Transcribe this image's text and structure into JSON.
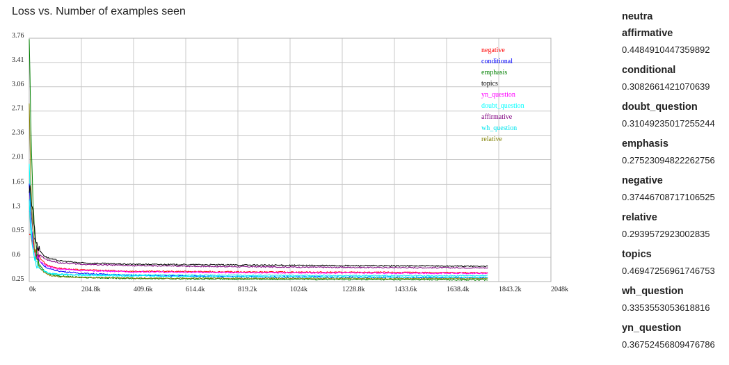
{
  "title": "Loss vs. Number of examples seen",
  "sidebar": {
    "title": "neutra",
    "entries": [
      {
        "name": "affirmative",
        "value": "0.4484910447359892"
      },
      {
        "name": "conditional",
        "value": "0.3082661421070639"
      },
      {
        "name": "doubt_question",
        "value": "0.31049235017255244"
      },
      {
        "name": "emphasis",
        "value": "0.27523094822262756"
      },
      {
        "name": "negative",
        "value": "0.37446708717106525"
      },
      {
        "name": "relative",
        "value": "0.2939572923002835"
      },
      {
        "name": "topics",
        "value": "0.46947256961746753"
      },
      {
        "name": "wh_question",
        "value": "0.3353553053618816"
      },
      {
        "name": "yn_question",
        "value": "0.36752456809476786"
      }
    ]
  },
  "chart_data": {
    "type": "line",
    "title": "Loss vs. Number of examples seen",
    "xlabel": "",
    "ylabel": "",
    "xlim": [
      0,
      2048
    ],
    "ylim": [
      0.25,
      3.76
    ],
    "x_unit": "k examples",
    "x_ticks": [
      0,
      204.8,
      409.6,
      614.4,
      819.2,
      1024,
      1228.8,
      1433.6,
      1638.4,
      1843.2,
      2048
    ],
    "x_tick_labels": [
      "0k",
      "204.8k",
      "409.6k",
      "614.4k",
      "819.2k",
      "1024k",
      "1228.8k",
      "1433.6k",
      "1638.4k",
      "1843.2k",
      "2048k"
    ],
    "y_ticks": [
      0.25,
      0.6,
      0.95,
      1.3,
      1.65,
      2.01,
      2.36,
      2.71,
      3.06,
      3.41,
      3.76
    ],
    "y_tick_labels": [
      "0.25",
      "0.6",
      "0.95",
      "1.3",
      "1.65",
      "2.01",
      "2.36",
      "2.71",
      "3.06",
      "3.41",
      "3.76"
    ],
    "grid": true,
    "legend_position": "top-right",
    "x_end": 1800,
    "series": [
      {
        "name": "negative",
        "color": "#ff0000",
        "x": [
          0,
          3,
          6,
          10,
          15,
          20,
          30,
          40,
          60,
          80,
          120,
          200,
          400,
          800,
          1200,
          1600,
          1800
        ],
        "y": [
          0.9,
          0.92,
          0.88,
          0.84,
          0.8,
          0.75,
          0.68,
          0.6,
          0.52,
          0.47,
          0.44,
          0.42,
          0.4,
          0.39,
          0.385,
          0.38,
          0.375
        ]
      },
      {
        "name": "conditional",
        "color": "#0000ff",
        "x": [
          0,
          3,
          6,
          10,
          15,
          20,
          30,
          40,
          60,
          80,
          120,
          200,
          400,
          800,
          1200,
          1600,
          1800
        ],
        "y": [
          1.65,
          1.45,
          1.2,
          0.95,
          0.8,
          0.7,
          0.6,
          0.55,
          0.47,
          0.43,
          0.4,
          0.37,
          0.34,
          0.32,
          0.315,
          0.31,
          0.31
        ]
      },
      {
        "name": "emphasis",
        "color": "#008000",
        "x": [
          0,
          3,
          6,
          10,
          15,
          20,
          30,
          40,
          60,
          80,
          120,
          200,
          400,
          800,
          1200,
          1600,
          1800
        ],
        "y": [
          3.75,
          3.2,
          2.6,
          2.0,
          1.4,
          1.0,
          0.65,
          0.5,
          0.4,
          0.36,
          0.33,
          0.31,
          0.295,
          0.285,
          0.28,
          0.277,
          0.275
        ]
      },
      {
        "name": "topics",
        "color": "#000000",
        "x": [
          0,
          3,
          6,
          10,
          15,
          20,
          30,
          40,
          60,
          80,
          120,
          200,
          400,
          800,
          1200,
          1600,
          1800
        ],
        "y": [
          1.55,
          1.6,
          1.5,
          1.35,
          1.3,
          1.0,
          0.8,
          0.7,
          0.62,
          0.58,
          0.55,
          0.52,
          0.5,
          0.49,
          0.48,
          0.475,
          0.47
        ]
      },
      {
        "name": "yn_question",
        "color": "#ff00ff",
        "x": [
          0,
          3,
          6,
          10,
          15,
          20,
          30,
          40,
          60,
          80,
          120,
          200,
          400,
          800,
          1200,
          1600,
          1800
        ],
        "y": [
          1.3,
          1.2,
          1.05,
          0.9,
          0.8,
          0.7,
          0.6,
          0.55,
          0.5,
          0.46,
          0.43,
          0.41,
          0.39,
          0.38,
          0.375,
          0.37,
          0.368
        ]
      },
      {
        "name": "doubt_question",
        "color": "#00ffff",
        "x": [
          0,
          3,
          6,
          10,
          15,
          20,
          30,
          40,
          60,
          80,
          120,
          200,
          400,
          800,
          1200,
          1600,
          1800
        ],
        "y": [
          2.0,
          1.6,
          1.2,
          0.9,
          0.7,
          0.6,
          0.5,
          0.45,
          0.4,
          0.37,
          0.35,
          0.34,
          0.33,
          0.32,
          0.315,
          0.312,
          0.31
        ]
      },
      {
        "name": "affirmative",
        "color": "#800080",
        "x": [
          0,
          3,
          6,
          10,
          15,
          20,
          30,
          40,
          60,
          80,
          120,
          200,
          400,
          800,
          1200,
          1600,
          1800
        ],
        "y": [
          1.6,
          1.5,
          1.3,
          1.1,
          0.95,
          0.85,
          0.72,
          0.65,
          0.58,
          0.55,
          0.52,
          0.5,
          0.48,
          0.465,
          0.455,
          0.45,
          0.448
        ]
      },
      {
        "name": "wh_question",
        "color": "#00e5ee",
        "x": [
          0,
          3,
          6,
          10,
          15,
          20,
          30,
          40,
          60,
          80,
          120,
          200,
          400,
          800,
          1200,
          1600,
          1800
        ],
        "y": [
          1.4,
          1.2,
          1.0,
          0.85,
          0.7,
          0.6,
          0.5,
          0.44,
          0.39,
          0.37,
          0.355,
          0.35,
          0.345,
          0.34,
          0.337,
          0.335,
          0.335
        ]
      },
      {
        "name": "relative",
        "color": "#808000",
        "x": [
          0,
          3,
          6,
          10,
          15,
          20,
          30,
          40,
          60,
          80,
          120,
          200,
          400,
          800,
          1200,
          1600,
          1800
        ],
        "y": [
          2.8,
          2.3,
          1.8,
          1.3,
          0.95,
          0.75,
          0.55,
          0.45,
          0.38,
          0.34,
          0.32,
          0.31,
          0.3,
          0.297,
          0.295,
          0.294,
          0.294
        ]
      }
    ]
  }
}
